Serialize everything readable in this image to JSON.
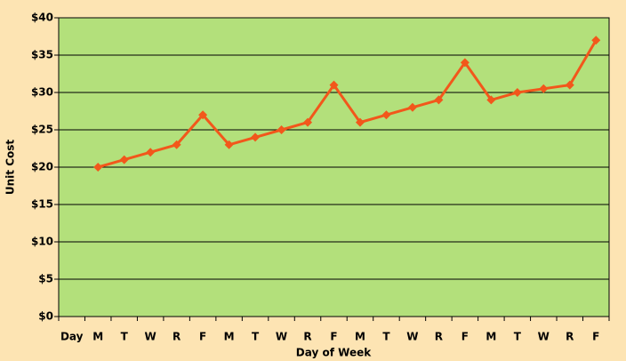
{
  "chart_data": {
    "type": "line",
    "x_label": "Day of  Week",
    "y_label": "Unit Cost",
    "categories": [
      "Day",
      "M",
      "T",
      "W",
      "R",
      "F",
      "M",
      "T",
      "W",
      "R",
      "F",
      "M",
      "T",
      "W",
      "R",
      "F",
      "M",
      "T",
      "W",
      "R",
      "F"
    ],
    "values": [
      null,
      20,
      21,
      22,
      23,
      27,
      23,
      24,
      25,
      26,
      31,
      26,
      27,
      28,
      29,
      34,
      29,
      30,
      30.5,
      31,
      37
    ],
    "color": "#f2571b",
    "ylim": [
      0,
      40
    ],
    "yticks": [
      {
        "value": 0,
        "label": "$0"
      },
      {
        "value": 5,
        "label": "$5"
      },
      {
        "value": 10,
        "label": "$10"
      },
      {
        "value": 15,
        "label": "$15"
      },
      {
        "value": 20,
        "label": "$20"
      },
      {
        "value": 25,
        "label": "$25"
      },
      {
        "value": 30,
        "label": "$30"
      },
      {
        "value": 35,
        "label": "$35"
      },
      {
        "value": 40,
        "label": "$40"
      }
    ],
    "grid": true
  }
}
